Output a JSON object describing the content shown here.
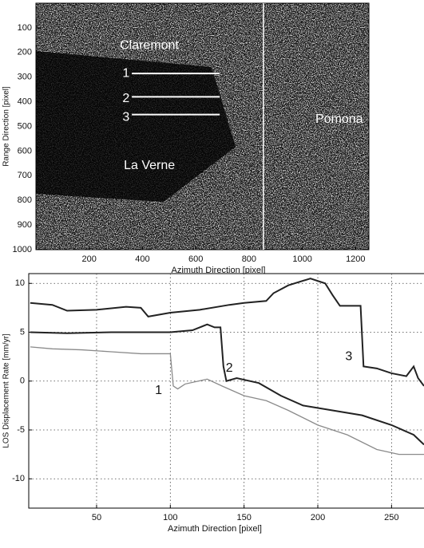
{
  "chart_data": [
    {
      "type": "image",
      "xlabel": "Azimuth Direction [pixel]",
      "ylabel": "Range Direction [pixel]",
      "xlim": [
        0,
        1250
      ],
      "ylim": [
        0,
        1000
      ],
      "y_inverted": true,
      "xticks": [
        200,
        400,
        600,
        800,
        1000,
        1200
      ],
      "yticks": [
        100,
        200,
        300,
        400,
        500,
        600,
        700,
        800,
        900,
        1000
      ],
      "annotations": [
        {
          "text": "Claremont",
          "x": 315,
          "y": 172
        },
        {
          "text": "1",
          "x": 325,
          "y": 285
        },
        {
          "text": "2",
          "x": 325,
          "y": 388
        },
        {
          "text": "3",
          "x": 325,
          "y": 463
        },
        {
          "text": "Pomona",
          "x": 1049,
          "y": 472
        },
        {
          "text": "La Verne",
          "x": 330,
          "y": 660
        }
      ],
      "profiles": [
        {
          "y": 285,
          "x": [
            360,
            690
          ]
        },
        {
          "y": 380,
          "x": [
            360,
            690
          ]
        },
        {
          "y": 452,
          "x": [
            360,
            690
          ]
        }
      ],
      "vertical_lines": [
        854
      ],
      "line_color": "#ffffff"
    },
    {
      "type": "line",
      "xlabel": "Azimuth Direction [pixel]",
      "ylabel": "LOS Displacement Rate [mm/yr]",
      "xlim": [
        4,
        272
      ],
      "ylim": [
        -13,
        11
      ],
      "xticks": [
        50,
        100,
        150,
        200,
        250
      ],
      "yticks": [
        10,
        5,
        0,
        -5,
        -10
      ],
      "grid": true,
      "series": [
        {
          "color": "#8a8a8a",
          "x": [
            5,
            20,
            40,
            60,
            80,
            100,
            102,
            105,
            110,
            125,
            135,
            150,
            165,
            180,
            200,
            220,
            240,
            255,
            272
          ],
          "values": [
            3.5,
            3.3,
            3.2,
            3.0,
            2.8,
            2.8,
            -0.5,
            -0.8,
            -0.3,
            0.2,
            -0.5,
            -1.5,
            -2.0,
            -3.0,
            -4.5,
            -5.5,
            -7.0,
            -7.5,
            -7.5
          ]
        },
        {
          "color": "#222222",
          "x": [
            5,
            30,
            60,
            100,
            115,
            125,
            130,
            134,
            136,
            138,
            145,
            160,
            175,
            190,
            210,
            230,
            250,
            265,
            272
          ],
          "values": [
            5.0,
            4.9,
            5.0,
            5.0,
            5.2,
            5.8,
            5.5,
            5.5,
            1.5,
            0,
            0.3,
            -0.2,
            -1.5,
            -2.5,
            -3.0,
            -3.5,
            -4.5,
            -5.5,
            -6.5
          ]
        },
        {
          "color": "#222222",
          "x": [
            5,
            20,
            30,
            50,
            70,
            80,
            85,
            100,
            120,
            140,
            150,
            165,
            170,
            180,
            195,
            205,
            210,
            215,
            229,
            231,
            240,
            250,
            260,
            265,
            268,
            272
          ],
          "values": [
            8.0,
            7.8,
            7.2,
            7.3,
            7.6,
            7.5,
            6.6,
            7.0,
            7.3,
            7.8,
            8.0,
            8.2,
            9.0,
            9.8,
            10.5,
            10.0,
            8.8,
            7.7,
            7.7,
            1.5,
            1.3,
            0.8,
            0.5,
            1.5,
            0.3,
            -0.5
          ]
        }
      ],
      "annotations": [
        {
          "text": "1",
          "x": 92,
          "y": -1
        },
        {
          "text": "2",
          "x": 140,
          "y": 1.3
        },
        {
          "text": "3",
          "x": 221,
          "y": 2.5
        }
      ]
    }
  ]
}
